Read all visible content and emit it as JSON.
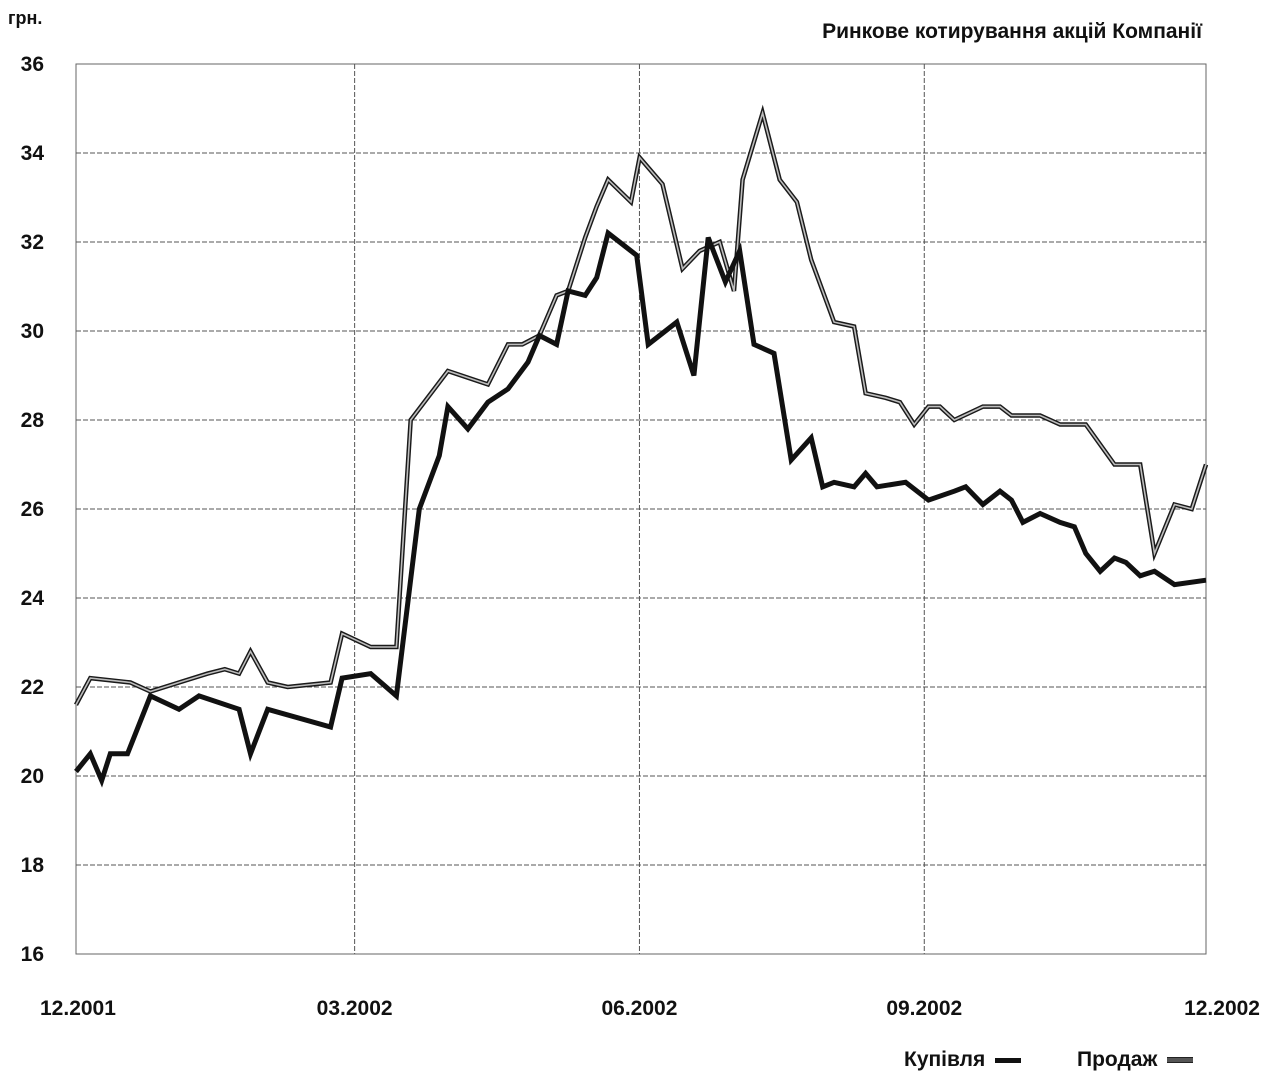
{
  "chart_data": {
    "type": "line",
    "title": "Ринкове котирування акцій Компанії",
    "ylabel": "грн.",
    "ylim": [
      16,
      36
    ],
    "yticks": [
      36,
      34,
      32,
      30,
      28,
      26,
      24,
      22,
      20,
      18,
      16
    ],
    "xlim": [
      "12.2001",
      "12.2002"
    ],
    "xticks": [
      "12.2001",
      "03.2002",
      "06.2002",
      "09.2002",
      "12.2002"
    ],
    "grid": true,
    "legend_position": "bottom-right",
    "series": [
      {
        "name": "Купівля",
        "color": "#111111",
        "points": [
          [
            "2001-12-01",
            20.1
          ],
          [
            "2001-12-06",
            20.5
          ],
          [
            "2001-12-10",
            19.9
          ],
          [
            "2001-12-13",
            20.5
          ],
          [
            "2001-12-19",
            20.5
          ],
          [
            "2001-12-27",
            21.8
          ],
          [
            "2002-01-06",
            21.5
          ],
          [
            "2002-01-13",
            21.8
          ],
          [
            "2002-01-27",
            21.5
          ],
          [
            "2002-01-31",
            20.5
          ],
          [
            "2002-02-06",
            21.5
          ],
          [
            "2002-02-28",
            21.1
          ],
          [
            "2002-03-04",
            22.2
          ],
          [
            "2002-03-14",
            22.3
          ],
          [
            "2002-03-23",
            21.8
          ],
          [
            "2002-03-31",
            26.0
          ],
          [
            "2002-04-07",
            27.2
          ],
          [
            "2002-04-10",
            28.3
          ],
          [
            "2002-04-17",
            27.8
          ],
          [
            "2002-04-24",
            28.4
          ],
          [
            "2002-05-01",
            28.7
          ],
          [
            "2002-05-08",
            29.3
          ],
          [
            "2002-05-12",
            29.9
          ],
          [
            "2002-05-18",
            29.7
          ],
          [
            "2002-05-22",
            30.9
          ],
          [
            "2002-05-28",
            30.8
          ],
          [
            "2002-06-01",
            31.2
          ],
          [
            "2002-06-05",
            32.2
          ],
          [
            "2002-06-15",
            31.7
          ],
          [
            "2002-06-19",
            29.7
          ],
          [
            "2002-06-29",
            30.2
          ],
          [
            "2002-07-05",
            29.0
          ],
          [
            "2002-07-10",
            32.1
          ],
          [
            "2002-07-16",
            31.1
          ],
          [
            "2002-07-21",
            31.8
          ],
          [
            "2002-07-26",
            29.7
          ],
          [
            "2002-08-02",
            29.5
          ],
          [
            "2002-08-08",
            27.1
          ],
          [
            "2002-08-15",
            27.6
          ],
          [
            "2002-08-19",
            26.5
          ],
          [
            "2002-08-23",
            26.6
          ],
          [
            "2002-08-30",
            26.5
          ],
          [
            "2002-09-03",
            26.8
          ],
          [
            "2002-09-07",
            26.5
          ],
          [
            "2002-09-17",
            26.6
          ],
          [
            "2002-09-25",
            26.2
          ],
          [
            "2002-10-04",
            26.4
          ],
          [
            "2002-10-08",
            26.5
          ],
          [
            "2002-10-14",
            26.1
          ],
          [
            "2002-10-20",
            26.4
          ],
          [
            "2002-10-24",
            26.2
          ],
          [
            "2002-10-28",
            25.7
          ],
          [
            "2002-11-03",
            25.9
          ],
          [
            "2002-11-10",
            25.7
          ],
          [
            "2002-11-15",
            25.6
          ],
          [
            "2002-11-19",
            25.0
          ],
          [
            "2002-11-24",
            24.6
          ],
          [
            "2002-11-29",
            24.9
          ],
          [
            "2002-12-03",
            24.8
          ],
          [
            "2002-12-08",
            24.5
          ],
          [
            "2002-12-13",
            24.6
          ],
          [
            "2002-12-20",
            24.3
          ],
          [
            "2002-12-31",
            24.4
          ]
        ]
      },
      {
        "name": "Продаж",
        "color": "#555555",
        "points": [
          [
            "2001-12-01",
            21.6
          ],
          [
            "2001-12-06",
            22.2
          ],
          [
            "2001-12-20",
            22.1
          ],
          [
            "2001-12-27",
            21.9
          ],
          [
            "2002-01-06",
            22.1
          ],
          [
            "2002-01-16",
            22.3
          ],
          [
            "2002-01-22",
            22.4
          ],
          [
            "2002-01-27",
            22.3
          ],
          [
            "2002-01-31",
            22.8
          ],
          [
            "2002-02-06",
            22.1
          ],
          [
            "2002-02-13",
            22.0
          ],
          [
            "2002-02-28",
            22.1
          ],
          [
            "2002-03-04",
            23.2
          ],
          [
            "2002-03-14",
            22.9
          ],
          [
            "2002-03-23",
            22.9
          ],
          [
            "2002-03-28",
            28.0
          ],
          [
            "2002-04-10",
            29.1
          ],
          [
            "2002-04-24",
            28.8
          ],
          [
            "2002-05-01",
            29.7
          ],
          [
            "2002-05-06",
            29.7
          ],
          [
            "2002-05-12",
            29.9
          ],
          [
            "2002-05-18",
            30.8
          ],
          [
            "2002-05-22",
            30.9
          ],
          [
            "2002-05-28",
            32.1
          ],
          [
            "2002-06-01",
            32.8
          ],
          [
            "2002-06-05",
            33.4
          ],
          [
            "2002-06-13",
            32.9
          ],
          [
            "2002-06-16",
            33.9
          ],
          [
            "2002-06-24",
            33.3
          ],
          [
            "2002-07-01",
            31.4
          ],
          [
            "2002-07-07",
            31.8
          ],
          [
            "2002-07-14",
            32.0
          ],
          [
            "2002-07-19",
            30.9
          ],
          [
            "2002-07-22",
            33.4
          ],
          [
            "2002-07-29",
            34.9
          ],
          [
            "2002-08-04",
            33.4
          ],
          [
            "2002-08-10",
            32.9
          ],
          [
            "2002-08-15",
            31.6
          ],
          [
            "2002-08-23",
            30.2
          ],
          [
            "2002-08-30",
            30.1
          ],
          [
            "2002-09-03",
            28.6
          ],
          [
            "2002-09-10",
            28.5
          ],
          [
            "2002-09-15",
            28.4
          ],
          [
            "2002-09-20",
            27.9
          ],
          [
            "2002-09-25",
            28.3
          ],
          [
            "2002-09-29",
            28.3
          ],
          [
            "2002-10-04",
            28.0
          ],
          [
            "2002-10-14",
            28.3
          ],
          [
            "2002-10-20",
            28.3
          ],
          [
            "2002-10-24",
            28.1
          ],
          [
            "2002-11-03",
            28.1
          ],
          [
            "2002-11-10",
            27.9
          ],
          [
            "2002-11-19",
            27.9
          ],
          [
            "2002-11-29",
            27.0
          ],
          [
            "2002-12-08",
            27.0
          ],
          [
            "2002-12-13",
            25.0
          ],
          [
            "2002-12-20",
            26.1
          ],
          [
            "2002-12-26",
            26.0
          ],
          [
            "2002-12-31",
            27.0
          ]
        ]
      }
    ]
  }
}
